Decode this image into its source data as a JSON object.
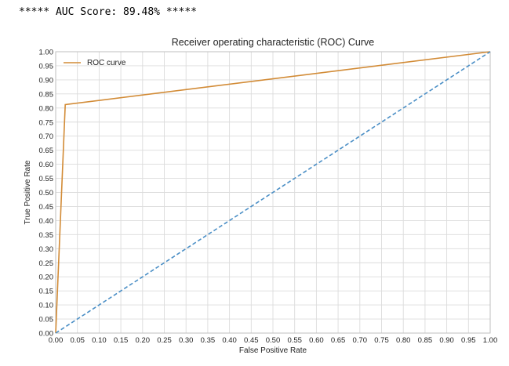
{
  "header": {
    "score_text": "***** AUC Score: 89.48% *****"
  },
  "chart_data": {
    "type": "line",
    "title": "Receiver operating characteristic (ROC) Curve",
    "xlabel": "False Positive Rate",
    "ylabel": "True Positive Rate",
    "xlim": [
      0,
      1
    ],
    "ylim": [
      0,
      1
    ],
    "xticks": [
      "0.00",
      "0.05",
      "0.10",
      "0.15",
      "0.20",
      "0.25",
      "0.30",
      "0.35",
      "0.40",
      "0.45",
      "0.50",
      "0.55",
      "0.60",
      "0.65",
      "0.70",
      "0.75",
      "0.80",
      "0.85",
      "0.90",
      "0.95",
      "1.00"
    ],
    "yticks": [
      "0.00",
      "0.05",
      "0.10",
      "0.15",
      "0.20",
      "0.25",
      "0.30",
      "0.35",
      "0.40",
      "0.45",
      "0.50",
      "0.55",
      "0.60",
      "0.65",
      "0.70",
      "0.75",
      "0.80",
      "0.85",
      "0.90",
      "0.95",
      "1.00"
    ],
    "grid": true,
    "legend_position": "top-left",
    "series": [
      {
        "name": "ROC curve",
        "color": "#d28b36",
        "style": "solid",
        "x": [
          0.0,
          0.022,
          1.0
        ],
        "y": [
          0.0,
          0.812,
          1.0
        ]
      },
      {
        "color": "#4b8fc6",
        "style": "dashed",
        "x": [
          0.0,
          1.0
        ],
        "y": [
          0.0,
          1.0
        ]
      }
    ]
  }
}
